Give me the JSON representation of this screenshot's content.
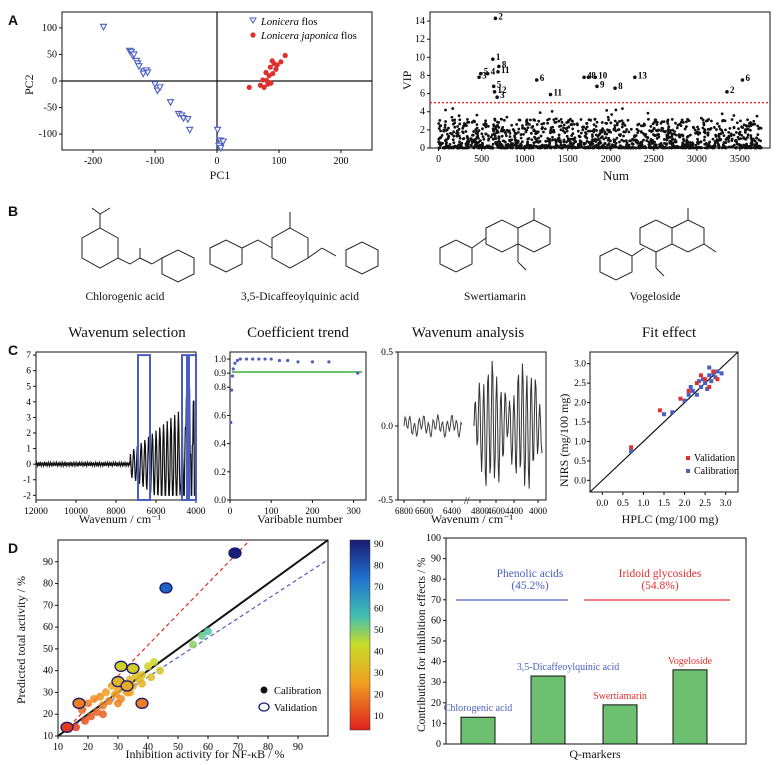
{
  "panels": {
    "a": "A",
    "b": "B",
    "c": "C",
    "d": "D"
  },
  "colors": {
    "blue": "#4a5fc1",
    "red": "#e0302e",
    "green": "#6cc070",
    "black": "#111111"
  },
  "pca": {
    "xlabel": "PC1",
    "ylabel": "PC2",
    "xticks": [
      "-200",
      "-100",
      "0",
      "100",
      "200"
    ],
    "yticks": [
      "100",
      "50",
      "0",
      "-50",
      "-100"
    ],
    "legend": [
      {
        "italic": "Lonicera",
        "rest": " flos",
        "marker": "blue-triangle"
      },
      {
        "italic": "Lonicera japonica",
        "rest": " flos",
        "marker": "red-dot"
      }
    ],
    "chart_data": {
      "type": "scatter",
      "xlim": [
        -250,
        250
      ],
      "ylim": [
        -130,
        130
      ],
      "series": [
        {
          "name": "Lonicera flos",
          "points": [
            [
              -183,
              102
            ],
            [
              -141,
              57
            ],
            [
              -138,
              55
            ],
            [
              -136,
              48
            ],
            [
              -134,
              50
            ],
            [
              -130,
              38
            ],
            [
              -128,
              33
            ],
            [
              -126,
              28
            ],
            [
              -118,
              18
            ],
            [
              -114,
              20
            ],
            [
              -112,
              16
            ],
            [
              -119,
              14
            ],
            [
              -100,
              -6
            ],
            [
              -96,
              -18
            ],
            [
              -92,
              -12
            ],
            [
              -75,
              -40
            ],
            [
              -62,
              -62
            ],
            [
              -57,
              -65
            ],
            [
              -54,
              -70
            ],
            [
              -47,
              -72
            ],
            [
              -44,
              -92
            ],
            [
              1,
              -92
            ],
            [
              5,
              -112
            ],
            [
              7,
              -118
            ],
            [
              10,
              -114
            ],
            [
              3,
              -122
            ],
            [
              6,
              -126
            ]
          ]
        },
        {
          "name": "Lonicera japonica flos",
          "points": [
            [
              52,
              -12
            ],
            [
              70,
              -8
            ],
            [
              76,
              -12
            ],
            [
              82,
              -6
            ],
            [
              87,
              -4
            ],
            [
              80,
              1
            ],
            [
              74,
              2
            ],
            [
              84,
              10
            ],
            [
              90,
              14
            ],
            [
              79,
              16
            ],
            [
              95,
              22
            ],
            [
              86,
              26
            ],
            [
              97,
              30
            ],
            [
              92,
              33
            ],
            [
              103,
              36
            ],
            [
              89,
              38
            ],
            [
              110,
              48
            ]
          ]
        }
      ]
    }
  },
  "vip": {
    "xlabel": "Num",
    "ylabel": "VIP",
    "xticks": [
      "0",
      "500",
      "1000",
      "1500",
      "2000",
      "2500",
      "3000",
      "3500"
    ],
    "yticks": [
      "0",
      "2",
      "4",
      "6",
      "8",
      "10",
      "12",
      "14"
    ],
    "chart_data": {
      "type": "scatter",
      "xlim": [
        -100,
        3850
      ],
      "ylim": [
        0,
        15
      ],
      "threshold": 5,
      "labeled_points": [
        {
          "x": 660,
          "y": 14.3,
          "label": "2"
        },
        {
          "x": 630,
          "y": 9.8,
          "label": "1"
        },
        {
          "x": 700,
          "y": 9.0,
          "label": "8"
        },
        {
          "x": 690,
          "y": 8.4,
          "label": "11"
        },
        {
          "x": 490,
          "y": 8.2,
          "label": "5"
        },
        {
          "x": 570,
          "y": 8.2,
          "label": "4"
        },
        {
          "x": 470,
          "y": 7.8,
          "label": "3"
        },
        {
          "x": 640,
          "y": 6.8,
          "label": "5"
        },
        {
          "x": 650,
          "y": 6.2,
          "label": "12"
        },
        {
          "x": 680,
          "y": 5.6,
          "label": "3"
        },
        {
          "x": 1140,
          "y": 7.5,
          "label": "6"
        },
        {
          "x": 1690,
          "y": 7.8,
          "label": "4"
        },
        {
          "x": 1740,
          "y": 7.8,
          "label": "8"
        },
        {
          "x": 1820,
          "y": 7.8,
          "label": "10"
        },
        {
          "x": 1840,
          "y": 6.8,
          "label": "9"
        },
        {
          "x": 2050,
          "y": 6.6,
          "label": "8"
        },
        {
          "x": 2280,
          "y": 7.8,
          "label": "13"
        },
        {
          "x": 1300,
          "y": 5.9,
          "label": "11"
        },
        {
          "x": 3530,
          "y": 7.5,
          "label": "6"
        },
        {
          "x": 3350,
          "y": 6.2,
          "label": "2"
        }
      ]
    }
  },
  "molecules": [
    {
      "name": "Chlorogenic acid",
      "color": "#4a5fc1"
    },
    {
      "name": "3,5-Dicaffeoylquinic acid",
      "color": "#4a5fc1"
    },
    {
      "name": "Swertiamarin",
      "color": "#e0302e"
    },
    {
      "name": "Vogeloside",
      "color": "#e0302e"
    }
  ],
  "c_titles": [
    "Wavenum selection",
    "Coefficient trend",
    "Wavenum analysis",
    "Fit effect"
  ],
  "c1": {
    "xlabel": "Wavenum / cm⁻¹",
    "xticks": [
      "12000",
      "10000",
      "8000",
      "6000",
      "4000"
    ],
    "yticks": [
      "7",
      "6",
      "5",
      "4",
      "3",
      "2",
      "1",
      "0",
      "-1",
      "-2"
    ]
  },
  "c2": {
    "xlabel": "Varibable number",
    "xticks": [
      "0",
      "100",
      "200",
      "300"
    ],
    "yticks": [
      "1.0",
      "0.9",
      "0.8",
      "0.6",
      "0.4",
      "0.2",
      "0.0"
    ]
  },
  "c3": {
    "xlabel": "Wavenum / cm⁻¹",
    "xticks": [
      "6800",
      "6600",
      "6400",
      "4800",
      "4600",
      "4400",
      "4000"
    ],
    "yticks": [
      "0.5",
      "0.0",
      "-0.5"
    ]
  },
  "c4": {
    "xlabel": "HPLC (mg/100 mg)",
    "ylabel": "NIRS (mg/100 mg)",
    "xticks": [
      "0.0",
      "0.5",
      "1.0",
      "1.5",
      "2.0",
      "2.5",
      "3.0"
    ],
    "yticks": [
      "3.0",
      "2.5",
      "2.0",
      "1.5",
      "1.0",
      "0.5",
      "0.0"
    ],
    "legend": [
      "Validation",
      "Calibration"
    ],
    "chart_data": {
      "type": "scatter",
      "xlim": [
        -0.3,
        3.3
      ],
      "ylim": [
        -0.3,
        3.3
      ],
      "series": [
        {
          "name": "Validation",
          "points": [
            [
              0.7,
              0.85
            ],
            [
              1.4,
              1.8
            ],
            [
              1.9,
              2.1
            ],
            [
              2.1,
              2.3
            ],
            [
              2.3,
              2.5
            ],
            [
              2.5,
              2.6
            ],
            [
              2.6,
              2.4
            ],
            [
              2.7,
              2.8
            ],
            [
              2.8,
              2.6
            ],
            [
              2.4,
              2.7
            ]
          ]
        },
        {
          "name": "Calibration",
          "points": [
            [
              0.7,
              0.75
            ],
            [
              1.5,
              1.7
            ],
            [
              1.7,
              1.75
            ],
            [
              2.0,
              2.05
            ],
            [
              2.1,
              2.2
            ],
            [
              2.2,
              2.3
            ],
            [
              2.3,
              2.2
            ],
            [
              2.4,
              2.4
            ],
            [
              2.45,
              2.6
            ],
            [
              2.5,
              2.5
            ],
            [
              2.55,
              2.35
            ],
            [
              2.6,
              2.7
            ],
            [
              2.65,
              2.55
            ],
            [
              2.7,
              2.75
            ],
            [
              2.75,
              2.65
            ],
            [
              2.8,
              2.8
            ],
            [
              2.9,
              2.75
            ],
            [
              2.35,
              2.55
            ],
            [
              2.15,
              2.4
            ],
            [
              2.6,
              2.9
            ]
          ]
        }
      ]
    }
  },
  "d1": {
    "xlabel": "Inhibition activity for NF-κB / %",
    "ylabel": "Predicted total activity / %",
    "xticks": [
      "10",
      "20",
      "30",
      "40",
      "50",
      "60",
      "70",
      "80",
      "90"
    ],
    "yticks": [
      "90",
      "80",
      "70",
      "60",
      "50",
      "40",
      "30",
      "20",
      "10"
    ],
    "legend": [
      "Calibration",
      "Validation"
    ],
    "colorbar_ticks": [
      "90",
      "80",
      "70",
      "60",
      "50",
      "40",
      "30",
      "20",
      "10"
    ],
    "chart_data": {
      "type": "scatter",
      "xlim": [
        10,
        100
      ],
      "ylim": [
        10,
        100
      ],
      "series": [
        {
          "name": "Calibration",
          "points": [
            [
              18,
              22
            ],
            [
              20,
              25
            ],
            [
              22,
              27
            ],
            [
              23,
              21
            ],
            [
              24,
              28
            ],
            [
              25,
              24
            ],
            [
              26,
              30
            ],
            [
              27,
              26
            ],
            [
              28,
              33
            ],
            [
              29,
              29
            ],
            [
              30,
              31
            ],
            [
              31,
              27
            ],
            [
              32,
              34
            ],
            [
              33,
              30
            ],
            [
              34,
              36
            ],
            [
              35,
              33
            ],
            [
              36,
              38
            ],
            [
              37,
              36
            ],
            [
              38,
              34
            ],
            [
              40,
              42
            ],
            [
              42,
              44
            ],
            [
              44,
              40
            ],
            [
              19,
              17
            ],
            [
              16,
              14
            ],
            [
              21,
              19
            ],
            [
              25,
              20
            ],
            [
              30,
              25
            ],
            [
              34,
              30
            ],
            [
              38,
              38
            ],
            [
              41,
              37
            ],
            [
              58,
              56
            ],
            [
              60,
              58
            ],
            [
              55,
              52
            ]
          ]
        },
        {
          "name": "Validation",
          "points": [
            [
              13,
              14
            ],
            [
              17,
              25
            ],
            [
              31,
              42
            ],
            [
              35,
              41
            ],
            [
              38,
              25
            ],
            [
              46,
              78
            ],
            [
              69,
              94
            ],
            [
              30,
              35
            ],
            [
              33,
              33
            ]
          ]
        }
      ]
    }
  },
  "d2": {
    "xlabel": "Q-markers",
    "ylabel": "Contribution for inhibition effects / %",
    "yticks": [
      "100",
      "90",
      "80",
      "70",
      "60",
      "50",
      "40",
      "30",
      "20",
      "10",
      "0"
    ],
    "group_labels": [
      {
        "name": "Phenolic acids",
        "pct": "(45.2%)",
        "color": "#4a5fc1"
      },
      {
        "name": "Iridoid glycosides",
        "pct": "(54.8%)",
        "color": "#e0302e"
      }
    ],
    "chart_data": {
      "type": "bar",
      "ylim": [
        0,
        100
      ],
      "categories": [
        "Chlorogenic acid",
        "3,5-Dicaffeoylquinic acid",
        "Swertiamarin",
        "Vogeloside"
      ],
      "values": [
        13,
        33,
        19,
        36
      ],
      "bar_label_colors": [
        "#4a5fc1",
        "#4a5fc1",
        "#e0302e",
        "#e0302e"
      ]
    }
  }
}
